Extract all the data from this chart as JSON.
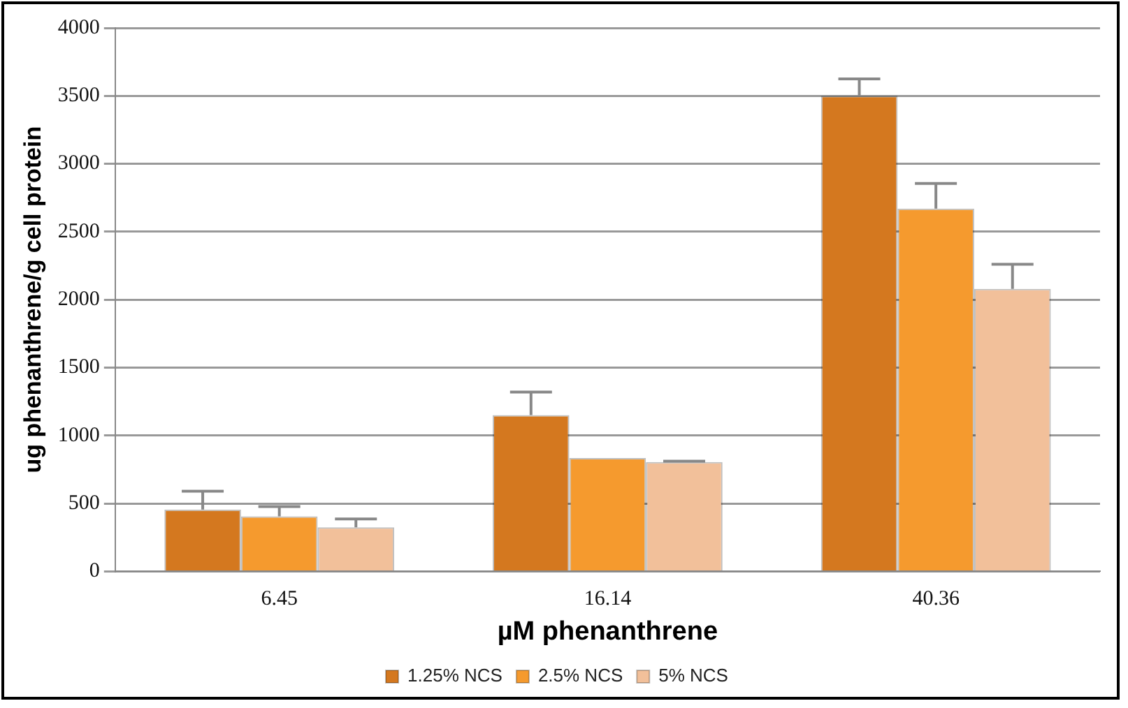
{
  "chart_data": {
    "type": "bar",
    "xlabel": "µM phenanthrene",
    "ylabel": "ug phenanthrene/g cell protein",
    "categories": [
      "6.45",
      "16.14",
      "40.36"
    ],
    "series": [
      {
        "name": "1.25% NCS",
        "color": "#d4781f",
        "values": [
          455,
          1150,
          3500
        ],
        "errors": [
          [
            455,
            590
          ],
          [
            1150,
            1320
          ],
          [
            3500,
            3625
          ]
        ]
      },
      {
        "name": "2.5% NCS",
        "color": "#f59a2e",
        "values": [
          405,
          835,
          2670
        ],
        "errors": [
          [
            405,
            478
          ],
          null,
          [
            2670,
            2855
          ]
        ]
      },
      {
        "name": "5% NCS",
        "color": "#f2c09a",
        "values": [
          325,
          805,
          2080
        ],
        "errors": [
          [
            325,
            386
          ],
          [
            805,
            812
          ],
          [
            2080,
            2260
          ]
        ]
      }
    ],
    "ylim": [
      0,
      4000
    ],
    "yticks": [
      0,
      500,
      1000,
      1500,
      2000,
      2500,
      3000,
      3500,
      4000
    ],
    "grid": "y",
    "legend": "bottom"
  }
}
